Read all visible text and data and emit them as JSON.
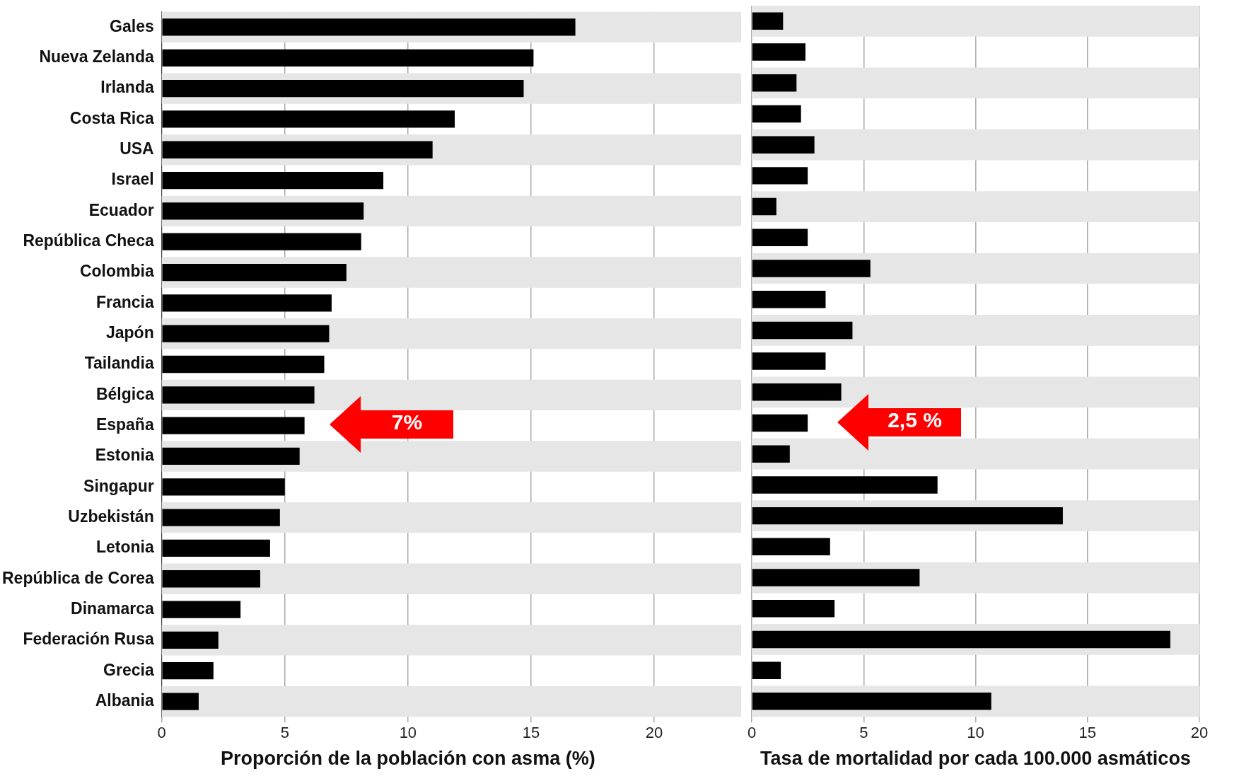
{
  "chart_data": [
    {
      "type": "bar",
      "orientation": "horizontal",
      "xlabel": "Proporción de la población con asma (%)",
      "categories": [
        "Gales",
        "Nueva Zelanda",
        "Irlanda",
        "Costa Rica",
        "USA",
        "Israel",
        "Ecuador",
        "República Checa",
        "Colombia",
        "Francia",
        "Japón",
        "Tailandia",
        "Bélgica",
        "España",
        "Estonia",
        "Singapur",
        "Uzbekistán",
        "Letonia",
        "República de Corea",
        "Dinamarca",
        "Federación Rusa",
        "Grecia",
        "Albania"
      ],
      "values": [
        16.8,
        15.1,
        14.7,
        11.9,
        11.0,
        9.0,
        8.2,
        8.1,
        7.5,
        6.9,
        6.8,
        6.6,
        6.2,
        5.8,
        5.6,
        5.0,
        4.8,
        4.4,
        4.0,
        3.2,
        2.3,
        2.1,
        1.5
      ],
      "color": "#000000",
      "xlim": [
        0,
        20
      ],
      "xticks": [
        0,
        5,
        10,
        15,
        20
      ],
      "grid": "x",
      "bands": [
        {
          "axis": "y",
          "from": "Gales",
          "to": "Gales",
          "color": "#e6e6e6"
        },
        {
          "axis": "y",
          "from": "Irlanda",
          "to": "Irlanda",
          "color": "#e6e6e6"
        },
        {
          "axis": "y",
          "from": "USA",
          "to": "USA",
          "color": "#e6e6e6"
        },
        {
          "axis": "y",
          "from": "Ecuador",
          "to": "Ecuador",
          "color": "#e6e6e6"
        },
        {
          "axis": "y",
          "from": "Colombia",
          "to": "Colombia",
          "color": "#e6e6e6"
        },
        {
          "axis": "y",
          "from": "Japón",
          "to": "Japón",
          "color": "#e6e6e6"
        },
        {
          "axis": "y",
          "from": "Bélgica",
          "to": "Bélgica",
          "color": "#e6e6e6"
        },
        {
          "axis": "y",
          "from": "Estonia",
          "to": "Estonia",
          "color": "#e6e6e6"
        },
        {
          "axis": "y",
          "from": "Uzbekistán",
          "to": "Uzbekistán",
          "color": "#e6e6e6"
        },
        {
          "axis": "y",
          "from": "República de Corea",
          "to": "República de Corea",
          "color": "#e6e6e6"
        },
        {
          "axis": "y",
          "from": "Federación Rusa",
          "to": "Federación Rusa",
          "color": "#e6e6e6"
        },
        {
          "axis": "y",
          "from": "Albania",
          "to": "Albania",
          "color": "#e6e6e6"
        }
      ],
      "annotations": [
        "7%"
      ]
    },
    {
      "type": "bar",
      "orientation": "horizontal",
      "xlabel": "Tasa de mortalidad por cada 100.000 asmáticos",
      "categories": [
        "Gales",
        "Nueva Zelanda",
        "Irlanda",
        "Costa Rica",
        "USA",
        "Israel",
        "Ecuador",
        "República Checa",
        "Colombia",
        "Francia",
        "Japón",
        "Tailandia",
        "Bélgica",
        "España",
        "Estonia",
        "Singapur",
        "Uzbekistán",
        "Letonia",
        "República de Corea",
        "Dinamarca",
        "Federación Rusa",
        "Grecia",
        "Albania"
      ],
      "values": [
        1.4,
        2.4,
        2.0,
        2.2,
        2.8,
        2.5,
        1.1,
        2.5,
        5.3,
        3.3,
        4.5,
        3.3,
        4.0,
        2.5,
        1.7,
        8.3,
        13.9,
        3.5,
        7.5,
        3.7,
        18.7,
        1.3,
        10.7
      ],
      "color": "#000000",
      "xlim": [
        0,
        20
      ],
      "xticks": [
        0,
        5,
        10,
        15,
        20
      ],
      "grid": "x",
      "tick_labels": "x",
      "bands": [
        {
          "axis": "y",
          "from": "Gales",
          "to": "Gales",
          "color": "#e6e6e6"
        },
        {
          "axis": "y",
          "from": "Irlanda",
          "to": "Irlanda",
          "color": "#e6e6e6"
        },
        {
          "axis": "y",
          "from": "USA",
          "to": "USA",
          "color": "#e6e6e6"
        },
        {
          "axis": "y",
          "from": "Ecuador",
          "to": "Ecuador",
          "color": "#e6e6e6"
        },
        {
          "axis": "y",
          "from": "Colombia",
          "to": "Colombia",
          "color": "#e6e6e6"
        },
        {
          "axis": "y",
          "from": "Japón",
          "to": "Japón",
          "color": "#e6e6e6"
        },
        {
          "axis": "y",
          "from": "Bélgica",
          "to": "Bélgica",
          "color": "#e6e6e6"
        },
        {
          "axis": "y",
          "from": "Estonia",
          "to": "Estonia",
          "color": "#e6e6e6"
        },
        {
          "axis": "y",
          "from": "Uzbekistán",
          "to": "Uzbekistán",
          "color": "#e6e6e6"
        },
        {
          "axis": "y",
          "from": "República de Corea",
          "to": "República de Corea",
          "color": "#e6e6e6"
        },
        {
          "axis": "y",
          "from": "Federación Rusa",
          "to": "Federación Rusa",
          "color": "#e6e6e6"
        },
        {
          "axis": "y",
          "from": "Albania",
          "to": "Albania",
          "color": "#e6e6e6"
        }
      ],
      "annotations": [
        "2,5 %"
      ]
    }
  ]
}
